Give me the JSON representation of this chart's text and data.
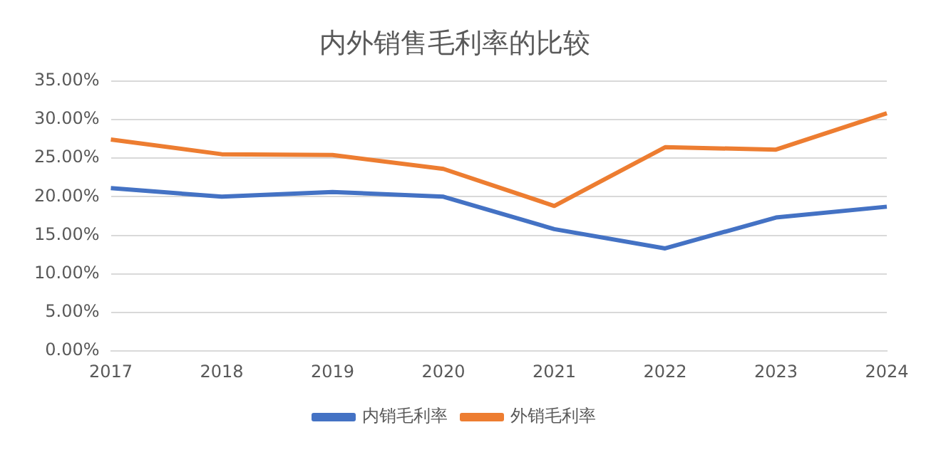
{
  "chart_data": {
    "type": "line",
    "title": "内外销售毛利率的比较",
    "categories": [
      "2017",
      "2018",
      "2019",
      "2020",
      "2021",
      "2022",
      "2023",
      "2024"
    ],
    "series": [
      {
        "name": "内销毛利率",
        "color": "#4472c4",
        "values": [
          21.1,
          20.0,
          20.6,
          20.0,
          15.8,
          13.3,
          17.3,
          18.7
        ]
      },
      {
        "name": "外销毛利率",
        "color": "#ed7d31",
        "values": [
          27.4,
          25.5,
          25.4,
          23.6,
          18.8,
          26.4,
          26.1,
          30.8
        ]
      }
    ],
    "ylim": [
      0,
      35
    ],
    "yticks": [
      {
        "value": 0,
        "label": "0.00%"
      },
      {
        "value": 5,
        "label": "5.00%"
      },
      {
        "value": 10,
        "label": "10.00%"
      },
      {
        "value": 15,
        "label": "15.00%"
      },
      {
        "value": 20,
        "label": "20.00%"
      },
      {
        "value": 25,
        "label": "25.00%"
      },
      {
        "value": 30,
        "label": "30.00%"
      },
      {
        "value": 35,
        "label": "35.00%"
      }
    ],
    "grid": "y",
    "legend": "bottom",
    "marker": "none",
    "line_style": "solid"
  }
}
